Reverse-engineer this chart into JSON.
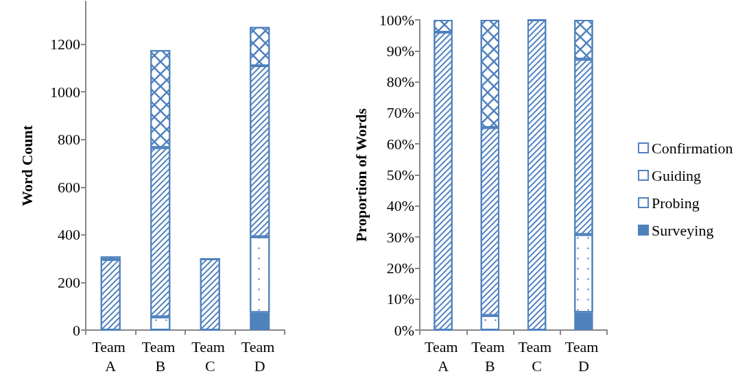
{
  "chart_data": [
    {
      "type": "bar",
      "stacked": true,
      "ylabel": "Word Count",
      "categories": [
        "Team A",
        "Team B",
        "Team C",
        "Team D"
      ],
      "ylim": [
        0,
        1380
      ],
      "yticks": [
        0,
        200,
        400,
        600,
        800,
        1000,
        1200
      ],
      "grid": false,
      "legend": "right",
      "series": [
        {
          "name": "Surveying",
          "color": "#4f81bd",
          "values": [
            0,
            0,
            0,
            73
          ]
        },
        {
          "name": "Probing",
          "color": "#4f81bd",
          "values": [
            0,
            55,
            0,
            319
          ]
        },
        {
          "name": "Guiding",
          "color": "#4f81bd",
          "values": [
            296,
            711,
            299,
            718
          ]
        },
        {
          "name": "Confirmation",
          "color": "#4f81bd",
          "values": [
            13,
            409,
            0,
            162
          ]
        }
      ]
    },
    {
      "type": "bar",
      "stacked": true,
      "ylabel": "Proportion of Words",
      "categories": [
        "Team A",
        "Team B",
        "Team C",
        "Team D"
      ],
      "ylim": [
        0,
        100
      ],
      "yticks": [
        {
          "value": 0,
          "label": "0%"
        },
        {
          "value": 10,
          "label": "10%"
        },
        {
          "value": 20,
          "label": "20%"
        },
        {
          "value": 30,
          "label": "30%"
        },
        {
          "value": 40,
          "label": "40%"
        },
        {
          "value": 50,
          "label": "50%"
        },
        {
          "value": 60,
          "label": "60%"
        },
        {
          "value": 70,
          "label": "70%"
        },
        {
          "value": 80,
          "label": "80%"
        },
        {
          "value": 90,
          "label": "90%"
        },
        {
          "value": 100,
          "label": "100%"
        }
      ],
      "grid": false,
      "legend": "right",
      "series": [
        {
          "name": "Surveying",
          "color": "#4f81bd",
          "values": [
            0,
            0,
            0,
            5.7
          ]
        },
        {
          "name": "Probing",
          "color": "#4f81bd",
          "values": [
            0,
            4.7,
            0,
            25.1
          ]
        },
        {
          "name": "Guiding",
          "color": "#4f81bd",
          "values": [
            96,
            60.6,
            100,
            56.5
          ]
        },
        {
          "name": "Confirmation",
          "color": "#4f81bd",
          "values": [
            4,
            34.7,
            0,
            12.7
          ]
        }
      ]
    }
  ]
}
